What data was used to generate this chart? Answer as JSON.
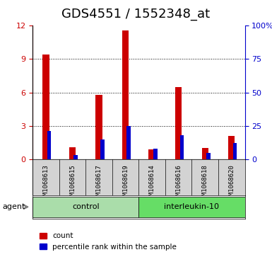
{
  "title": "GDS4551 / 1552348_at",
  "samples": [
    "GSM1068613",
    "GSM1068615",
    "GSM1068617",
    "GSM1068619",
    "GSM1068614",
    "GSM1068616",
    "GSM1068618",
    "GSM1068620"
  ],
  "counts": [
    9.4,
    1.1,
    5.8,
    11.6,
    0.9,
    6.5,
    1.0,
    2.1
  ],
  "percentiles": [
    21,
    3,
    15,
    25,
    8,
    18,
    5,
    12
  ],
  "groups": [
    "control",
    "control",
    "control",
    "control",
    "interleukin-10",
    "interleukin-10",
    "interleukin-10",
    "interleukin-10"
  ],
  "group_labels": [
    "control",
    "interleukin-10"
  ],
  "group_colors": [
    "#90ee90",
    "#66dd66"
  ],
  "bar_width": 0.35,
  "ylim_left": [
    0,
    12
  ],
  "ylim_right": [
    0,
    100
  ],
  "yticks_left": [
    0,
    3,
    6,
    9,
    12
  ],
  "yticks_right": [
    0,
    25,
    50,
    75,
    100
  ],
  "yticklabels_right": [
    "0",
    "25",
    "50",
    "75",
    "100%"
  ],
  "count_color": "#cc0000",
  "percentile_color": "#0000cc",
  "bg_color": "#d3d3d3",
  "plot_bg": "#ffffff",
  "legend_count": "count",
  "legend_percentile": "percentile rank within the sample",
  "agent_label": "agent",
  "title_fontsize": 13
}
